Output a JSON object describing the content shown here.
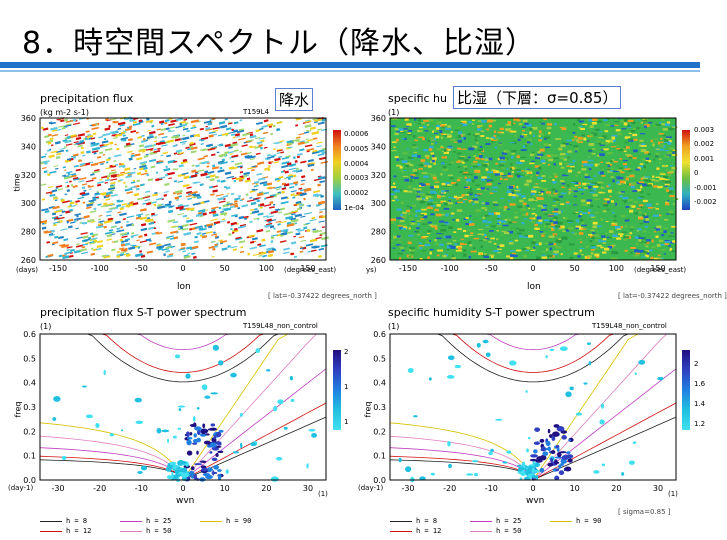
{
  "slide": {
    "title": "8．時空間スペクトル（降水、比湿）"
  },
  "top_left": {
    "title": "precipitation flux",
    "units": "(kg m-2 s-1)",
    "run": "T159L4",
    "box_label": "降水",
    "ylabel": "time",
    "yunit": "(days)",
    "xlabel": "lon",
    "xunit": "(degrees_east)",
    "yticks": [
      "360",
      "340",
      "320",
      "300",
      "280",
      "260"
    ],
    "xticks": [
      "-150",
      "-100",
      "-50",
      "0",
      "50",
      "100",
      "150"
    ],
    "colorbar": [
      "0.0006",
      "0.0005",
      "0.0004",
      "0.0003",
      "0.0002",
      "1e-04"
    ],
    "note": "[ lat=-0.37422 degrees_north ]"
  },
  "top_right": {
    "title": "specific hu",
    "units": "(1)",
    "box_label": "比湿（下層：σ=0.85）",
    "yunit": "ys)",
    "xlabel": "lon",
    "xunit": "(degrees_east)",
    "yticks": [
      "360",
      "340",
      "320",
      "300",
      "280",
      "260"
    ],
    "xticks": [
      "-150",
      "-100",
      "-50",
      "0",
      "50",
      "100",
      "150"
    ],
    "colorbar": [
      "0.003",
      "0.002",
      "0.001",
      "0",
      "-0.001",
      "-0.002"
    ],
    "note": "[ lat=-0.37422 degrees_north ]"
  },
  "bottom_left": {
    "title": "precipitation flux S-T power spectrum",
    "units": "(1)",
    "run": "T159L48_non_control",
    "ylabel": "freq",
    "yunit": "(day-1)",
    "xlabel": "wvn",
    "xunit": "(1)",
    "yticks": [
      "0.6",
      "0.5",
      "0.4",
      "0.3",
      "0.2",
      "0.1",
      "0.0"
    ],
    "xticks": [
      "-30",
      "-20",
      "-10",
      "0",
      "10",
      "20",
      "30"
    ],
    "colorbar": [
      "2",
      "1",
      "1"
    ]
  },
  "bottom_right": {
    "title": "specific humidity S-T power spectrum",
    "units": "(1)",
    "run": "T159L48_non_control",
    "ylabel": "freq",
    "yunit": "(day-1)",
    "xlabel": "wvn",
    "xunit": "(1)",
    "yticks": [
      "0.6",
      "0.5",
      "0.4",
      "0.3",
      "0.2",
      "0.1",
      "0.0"
    ],
    "xticks": [
      "-30",
      "-20",
      "-10",
      "0",
      "10",
      "20",
      "30"
    ],
    "colorbar": [
      "2",
      "1.6",
      "1.4",
      "1.2"
    ],
    "note": "[ sigma=0.85 ]"
  },
  "legend": [
    {
      "label": "h =  8",
      "color": "#222222"
    },
    {
      "label": "h = 12",
      "color": "#d01010"
    },
    {
      "label": "h = 25",
      "color": "#c040c0"
    },
    {
      "label": "h = 50",
      "color": "#e080c0"
    },
    {
      "label": "h = 90",
      "color": "#d8c000"
    }
  ]
}
